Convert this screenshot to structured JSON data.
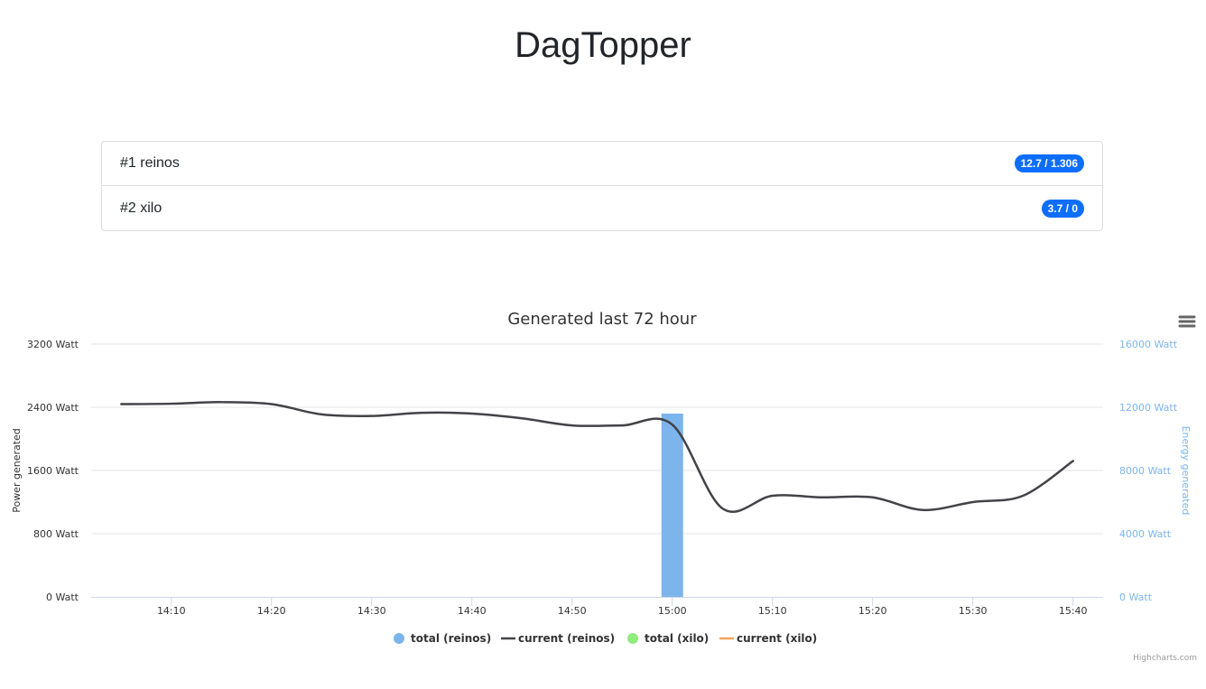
{
  "page": {
    "title": "DagTopper"
  },
  "ranking": [
    {
      "label": "#1 reinos",
      "badge": "12.7 / 1.306"
    },
    {
      "label": "#2 xilo",
      "badge": "3.7 / 0"
    }
  ],
  "credits": "Highcharts.com",
  "chart_data": {
    "type": "line",
    "title": "Generated last 72 hour",
    "x_type": "time",
    "x_range": [
      "14:02",
      "15:43"
    ],
    "x_ticks": [
      "14:10",
      "14:20",
      "14:30",
      "14:40",
      "14:50",
      "15:00",
      "15:10",
      "15:20",
      "15:30",
      "15:40"
    ],
    "y_left": {
      "label": "Power generated",
      "range": [
        0,
        3200
      ],
      "ticks": [
        "0 Watt",
        "800 Watt",
        "1600 Watt",
        "2400 Watt",
        "3200 Watt"
      ]
    },
    "y_right": {
      "label": "Energy generated",
      "range": [
        0,
        16000
      ],
      "ticks": [
        "0 Watt",
        "4000 Watt",
        "8000 Watt",
        "12000 Watt",
        "16000 Watt"
      ]
    },
    "grid": true,
    "legend_position": "bottom-center",
    "series": [
      {
        "name": "total (reinos)",
        "type": "column",
        "axis": "right",
        "color": "#7cb5ec",
        "points": [
          {
            "x": "15:00",
            "y": 11600
          }
        ]
      },
      {
        "name": "current (reinos)",
        "type": "spline",
        "axis": "left",
        "color": "#434348",
        "points": [
          {
            "x": "14:05",
            "y": 2440
          },
          {
            "x": "14:10",
            "y": 2445
          },
          {
            "x": "14:15",
            "y": 2465
          },
          {
            "x": "14:20",
            "y": 2440
          },
          {
            "x": "14:25",
            "y": 2310
          },
          {
            "x": "14:30",
            "y": 2290
          },
          {
            "x": "14:35",
            "y": 2330
          },
          {
            "x": "14:40",
            "y": 2320
          },
          {
            "x": "14:45",
            "y": 2260
          },
          {
            "x": "14:50",
            "y": 2170
          },
          {
            "x": "14:55",
            "y": 2170
          },
          {
            "x": "15:00",
            "y": 2180
          },
          {
            "x": "15:05",
            "y": 1120
          },
          {
            "x": "15:10",
            "y": 1280
          },
          {
            "x": "15:15",
            "y": 1260
          },
          {
            "x": "15:20",
            "y": 1260
          },
          {
            "x": "15:25",
            "y": 1100
          },
          {
            "x": "15:30",
            "y": 1200
          },
          {
            "x": "15:35",
            "y": 1280
          },
          {
            "x": "15:40",
            "y": 1720
          }
        ]
      },
      {
        "name": "total (xilo)",
        "type": "column",
        "axis": "right",
        "color": "#90ed7d",
        "points": []
      },
      {
        "name": "current (xilo)",
        "type": "spline",
        "axis": "left",
        "color": "#f7a35c",
        "points": []
      }
    ]
  }
}
